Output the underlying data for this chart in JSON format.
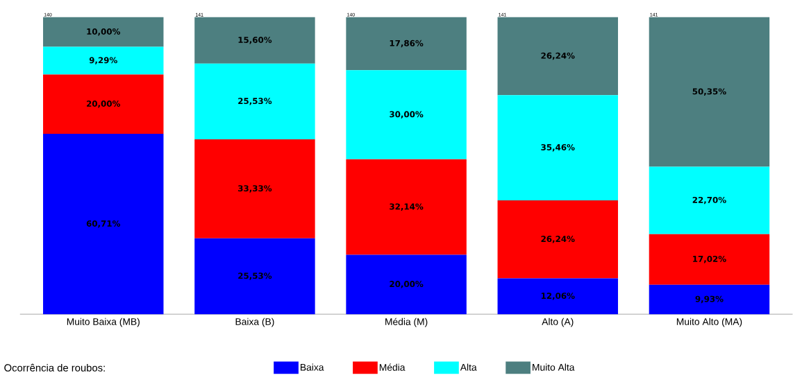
{
  "chart_data": {
    "type": "bar",
    "stacked": true,
    "legend": "bottom",
    "legend_title": "Ocorrência de roubos:",
    "tick_labels": "x",
    "categories": [
      "Muito Baixa (MB)",
      "Baixa (B)",
      "Média (M)",
      "Alto (A)",
      "Muito Alto (MA)"
    ],
    "annotations": [
      "140",
      "141",
      "140",
      "141",
      "141"
    ],
    "series": [
      {
        "name": "Baixa",
        "color": "#0000ff",
        "values": [
          60.71,
          25.53,
          20.0,
          12.06,
          9.93
        ],
        "value_labels": [
          "60,71%",
          "25,53%",
          "20,00%",
          "12,06%",
          "9,93%"
        ]
      },
      {
        "name": "Média",
        "color": "#ff0000",
        "values": [
          20.0,
          33.33,
          32.14,
          26.24,
          17.02
        ],
        "value_labels": [
          "20,00%",
          "33,33%",
          "32,14%",
          "26,24%",
          "17,02%"
        ]
      },
      {
        "name": "Alta",
        "color": "#00ffff",
        "values": [
          9.29,
          25.53,
          30.0,
          35.46,
          22.7
        ],
        "value_labels": [
          "9,29%",
          "25,53%",
          "30,00%",
          "35,46%",
          "22,70%"
        ]
      },
      {
        "name": "Muito Alta",
        "color": "#4d7f80",
        "values": [
          10.0,
          15.6,
          17.86,
          26.24,
          50.35
        ],
        "value_labels": [
          "10,00%",
          "15,60%",
          "17,86%",
          "26,24%",
          "50,35%"
        ]
      }
    ]
  }
}
